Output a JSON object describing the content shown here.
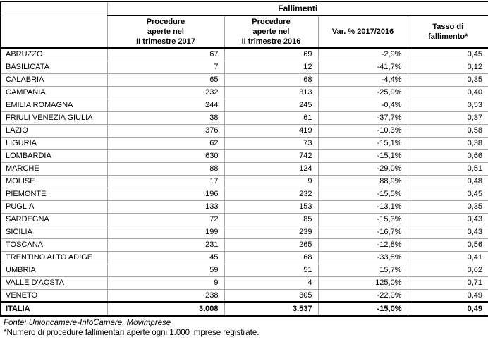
{
  "table": {
    "group_header": "Fallimenti",
    "columns": [
      "Procedure\naperte nel\nII trimestre 2017",
      "Procedure\naperte nel\nII trimestre 2016",
      "Var. % 2017/2016",
      "Tasso di\nfallimento*"
    ],
    "rows": [
      {
        "region": "ABRUZZO",
        "open_2017": "67",
        "open_2016": "69",
        "var_pct": "-2,9%",
        "rate": "0,45"
      },
      {
        "region": "BASILICATA",
        "open_2017": "7",
        "open_2016": "12",
        "var_pct": "-41,7%",
        "rate": "0,12"
      },
      {
        "region": "CALABRIA",
        "open_2017": "65",
        "open_2016": "68",
        "var_pct": "-4,4%",
        "rate": "0,35"
      },
      {
        "region": "CAMPANIA",
        "open_2017": "232",
        "open_2016": "313",
        "var_pct": "-25,9%",
        "rate": "0,40"
      },
      {
        "region": "EMILIA ROMAGNA",
        "open_2017": "244",
        "open_2016": "245",
        "var_pct": "-0,4%",
        "rate": "0,53"
      },
      {
        "region": "FRIULI VENEZIA GIULIA",
        "open_2017": "38",
        "open_2016": "61",
        "var_pct": "-37,7%",
        "rate": "0,37"
      },
      {
        "region": "LAZIO",
        "open_2017": "376",
        "open_2016": "419",
        "var_pct": "-10,3%",
        "rate": "0,58"
      },
      {
        "region": "LIGURIA",
        "open_2017": "62",
        "open_2016": "73",
        "var_pct": "-15,1%",
        "rate": "0,38"
      },
      {
        "region": "LOMBARDIA",
        "open_2017": "630",
        "open_2016": "742",
        "var_pct": "-15,1%",
        "rate": "0,66"
      },
      {
        "region": "MARCHE",
        "open_2017": "88",
        "open_2016": "124",
        "var_pct": "-29,0%",
        "rate": "0,51"
      },
      {
        "region": "MOLISE",
        "open_2017": "17",
        "open_2016": "9",
        "var_pct": "88,9%",
        "rate": "0,48"
      },
      {
        "region": "PIEMONTE",
        "open_2017": "196",
        "open_2016": "232",
        "var_pct": "-15,5%",
        "rate": "0,45"
      },
      {
        "region": "PUGLIA",
        "open_2017": "133",
        "open_2016": "153",
        "var_pct": "-13,1%",
        "rate": "0,35"
      },
      {
        "region": "SARDEGNA",
        "open_2017": "72",
        "open_2016": "85",
        "var_pct": "-15,3%",
        "rate": "0,43"
      },
      {
        "region": "SICILIA",
        "open_2017": "199",
        "open_2016": "239",
        "var_pct": "-16,7%",
        "rate": "0,43"
      },
      {
        "region": "TOSCANA",
        "open_2017": "231",
        "open_2016": "265",
        "var_pct": "-12,8%",
        "rate": "0,56"
      },
      {
        "region": "TRENTINO ALTO ADIGE",
        "open_2017": "45",
        "open_2016": "68",
        "var_pct": "-33,8%",
        "rate": "0,41"
      },
      {
        "region": "UMBRIA",
        "open_2017": "59",
        "open_2016": "51",
        "var_pct": "15,7%",
        "rate": "0,62"
      },
      {
        "region": "VALLE D'AOSTA",
        "open_2017": "9",
        "open_2016": "4",
        "var_pct": "125,0%",
        "rate": "0,71"
      },
      {
        "region": "VENETO",
        "open_2017": "238",
        "open_2016": "305",
        "var_pct": "-22,0%",
        "rate": "0,49"
      }
    ],
    "total": {
      "region": "ITALIA",
      "open_2017": "3.008",
      "open_2016": "3.537",
      "var_pct": "-15,0%",
      "rate": "0,49"
    }
  },
  "footer": {
    "source": "Fonte: Unioncamere-InfoCamere, Movimprese",
    "note": "*Numero di procedure fallimentari aperte ogni 1.000 imprese registrate."
  }
}
